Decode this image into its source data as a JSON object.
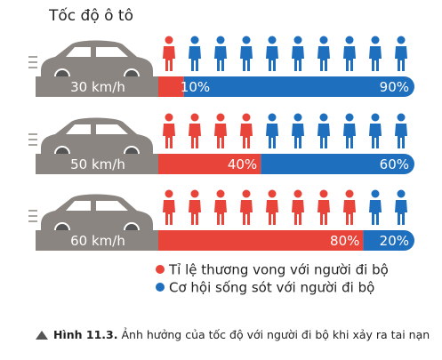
{
  "chart_data": {
    "type": "bar",
    "orientation": "horizontal",
    "stacked": true,
    "pictogram": true,
    "title": "Tốc độ ô tô",
    "categories": [
      "30 km/h",
      "50 km/h",
      "60 km/h"
    ],
    "series": [
      {
        "name": "Tỉ lệ thương vong với người đi bộ",
        "color": "#e8443a",
        "values": [
          10,
          40,
          80
        ],
        "value_labels": [
          "10%",
          "40%",
          "80%"
        ]
      },
      {
        "name": "Cơ hội sống sót với người đi bộ",
        "color": "#1f6fbf",
        "values": [
          90,
          60,
          20
        ],
        "value_labels": [
          "90%",
          "60%",
          "20%"
        ]
      }
    ],
    "xlim": [
      0,
      100
    ],
    "caption": {
      "label": "Hình 11.3.",
      "text": "Ảnh hưởng của tốc độ với người đi bộ khi xảy ra tai nạn"
    }
  }
}
